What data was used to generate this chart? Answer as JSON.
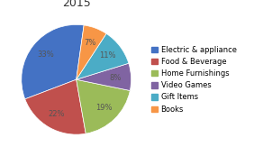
{
  "title": "2015",
  "labels": [
    "Electric & appliance",
    "Food & Beverage",
    "Home Furnishings",
    "Video Games",
    "Gift Items",
    "Books"
  ],
  "values": [
    33,
    22,
    19,
    8,
    11,
    7
  ],
  "colors": [
    "#4472C4",
    "#C0504D",
    "#9BBB59",
    "#8064A2",
    "#4BACC6",
    "#F79646"
  ],
  "autopct_fontsize": 6,
  "legend_fontsize": 6,
  "title_fontsize": 9,
  "background_color": "#FFFFFF",
  "startangle": 82,
  "pct_color": "#555555"
}
